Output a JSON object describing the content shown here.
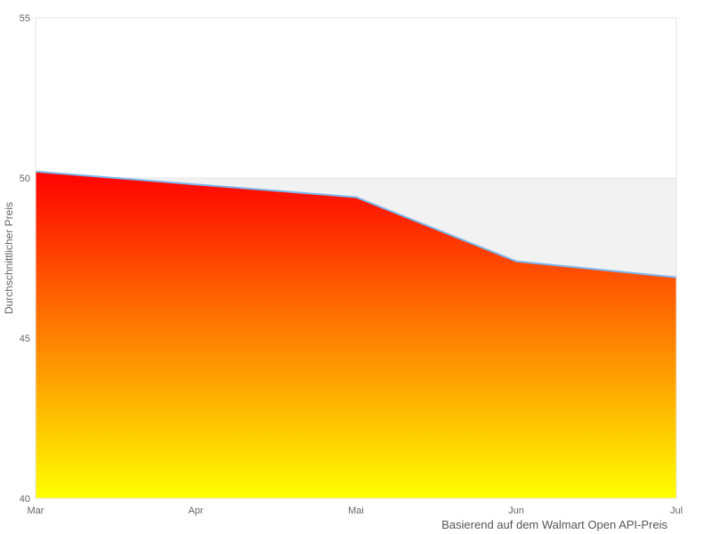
{
  "chart": {
    "y_axis_title": "Durchschnittlicher Preis",
    "caption": "Basierend auf dem Walmart Open API-Preis"
  },
  "chart_data": {
    "type": "area",
    "categories": [
      "Mar",
      "Apr",
      "Mai",
      "Jun",
      "Jul"
    ],
    "values": [
      50.2,
      49.8,
      49.4,
      47.4,
      46.9
    ],
    "title": "",
    "xlabel": "",
    "ylabel": "Durchschnittlicher Preis",
    "caption": "Basierend auf dem Walmart Open API-Preis",
    "ylim": [
      40,
      55
    ],
    "yticks": [
      55,
      50,
      45,
      40
    ],
    "grid": true,
    "legend": false,
    "plot_band": {
      "from": 46.9,
      "to": 50.0,
      "color": "#f2f2f2"
    },
    "colors": {
      "line": "#7cb5ec",
      "fill_top": "#ff0000",
      "fill_bottom": "#ffff00",
      "grid": "#e6e6e6",
      "axis_label": "#666666",
      "axis_title": "#666666",
      "caption_text": "#555555"
    }
  }
}
